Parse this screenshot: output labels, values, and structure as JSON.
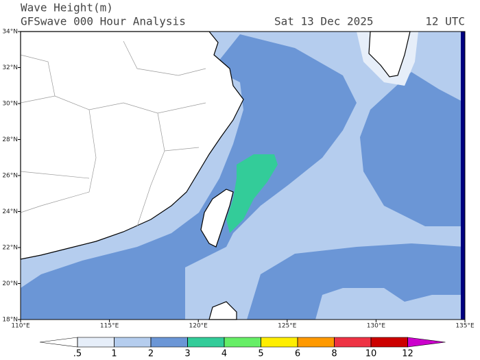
{
  "header": {
    "title": "Wave Height(m)",
    "subtitle": "GFSwave 000 Hour Analysis",
    "date": "Sat 13 Dec 2025",
    "time": "12 UTC"
  },
  "map": {
    "lonlim": [
      110,
      135
    ],
    "latlim": [
      18,
      34
    ],
    "lonticks": [
      {
        "value": 110,
        "label": "110°E"
      },
      {
        "value": 115,
        "label": "115°E"
      },
      {
        "value": 120,
        "label": "120°E"
      },
      {
        "value": 125,
        "label": "125°E"
      },
      {
        "value": 130,
        "label": "130°E"
      },
      {
        "value": 135,
        "label": "135°E"
      }
    ],
    "latticks": [
      {
        "value": 18,
        "label": "18°N"
      },
      {
        "value": 20,
        "label": "20°N"
      },
      {
        "value": 22,
        "label": "22°N"
      },
      {
        "value": 24,
        "label": "24°N"
      },
      {
        "value": 26,
        "label": "26°N"
      },
      {
        "value": 28,
        "label": "28°N"
      },
      {
        "value": 30,
        "label": "30°N"
      },
      {
        "value": 32,
        "label": "32°N"
      },
      {
        "value": 34,
        "label": "34°N"
      }
    ]
  },
  "colorbar": {
    "levels": [
      {
        "value": 0.5,
        "label": ".5"
      },
      1,
      2,
      3,
      4,
      5,
      6,
      8,
      10,
      12
    ],
    "colors": [
      "#ffffff",
      "#e6eef9",
      "#b5cdee",
      "#6b96d6",
      "#33cc99",
      "#66ee66",
      "#ffee00",
      "#ff9900",
      "#ee3344",
      "#cc0000",
      "#cc00cc"
    ]
  }
}
